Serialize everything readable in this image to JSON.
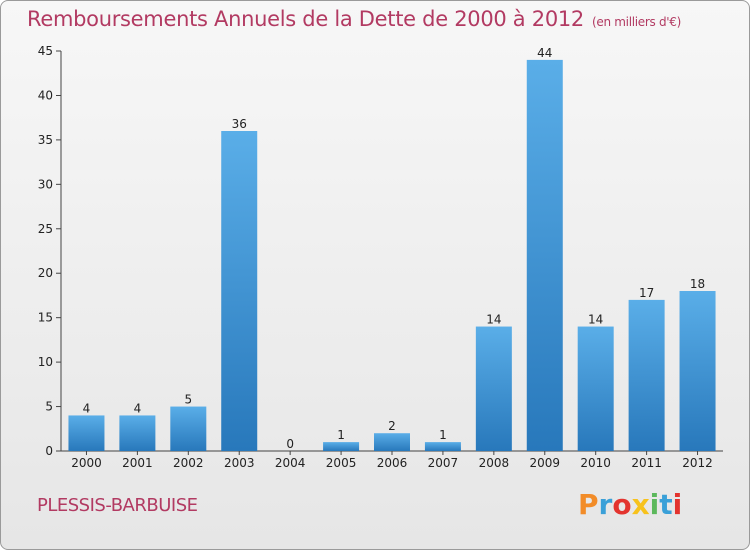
{
  "title": "Remboursements Annuels de la Dette de 2000 à 2012",
  "unit": "(en milliers d'€)",
  "city": "PLESSIS-BARBUISE",
  "brand": {
    "text": "Proxiti",
    "colors": [
      "#f28c28",
      "#3aa0d8",
      "#e3342f",
      "#f7c21c",
      "#5cb85c",
      "#3aa0d8",
      "#e3342f"
    ]
  },
  "colors": {
    "bar_light": "#5aaee8",
    "bar_dark": "#2878bb",
    "title": "#b23a62"
  },
  "chart_data": {
    "type": "bar",
    "categories": [
      "2000",
      "2001",
      "2002",
      "2003",
      "2004",
      "2005",
      "2006",
      "2007",
      "2008",
      "2009",
      "2010",
      "2011",
      "2012"
    ],
    "values": [
      4,
      4,
      5,
      36,
      0,
      1,
      2,
      1,
      14,
      44,
      14,
      17,
      18
    ],
    "ylim": [
      0,
      45
    ],
    "yticks": [
      0,
      5,
      10,
      15,
      20,
      25,
      30,
      35,
      40,
      45
    ],
    "grid": false
  }
}
